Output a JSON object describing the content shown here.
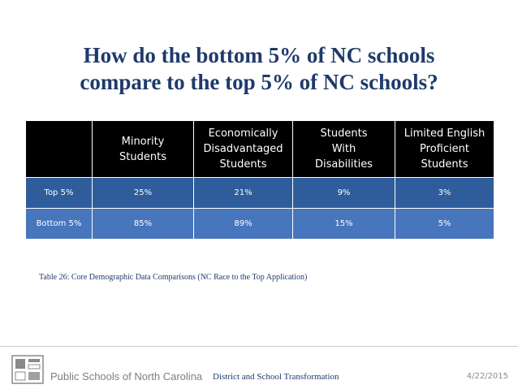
{
  "slide": {
    "title_line1": "How do the bottom 5% of NC schools",
    "title_line2": "compare to the top 5% of NC schools?",
    "caption": "Table 26: Core Demographic Data Comparisons (NC Race to the Top Application)"
  },
  "table": {
    "headers": [
      "",
      [
        "Minority",
        "Students"
      ],
      [
        "Economically",
        "Disadvantaged",
        "Students"
      ],
      [
        "Students",
        "With",
        "Disabilities"
      ],
      [
        "Limited English",
        "Proficient",
        "Students"
      ]
    ],
    "rows": [
      [
        "Top 5%",
        "25%",
        "21%",
        "9%",
        "3%"
      ],
      [
        "Bottom 5%",
        "85%",
        "89%",
        "15%",
        "5%"
      ]
    ]
  },
  "footer": {
    "org": "Public Schools of North Carolina",
    "center": "District and School Transformation",
    "date": "4/22/2015"
  },
  "colors": {
    "title": "#1f3a6b",
    "header_bg": "#000000",
    "row_top_bg": "#2f5d9c",
    "row_bottom_bg": "#4876bd"
  },
  "icons": {
    "footer_logo": "nc-schools-logo-icon"
  }
}
